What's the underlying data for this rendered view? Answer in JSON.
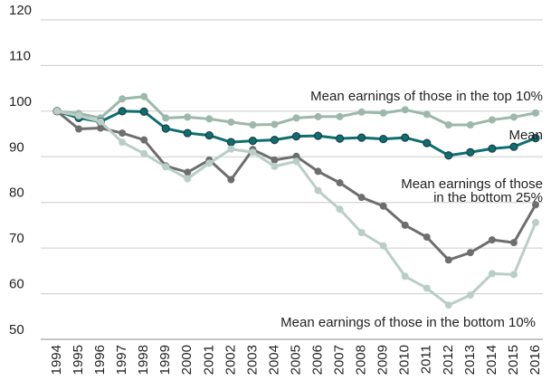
{
  "chart_data": {
    "type": "line",
    "x": [
      1994,
      1995,
      1996,
      1997,
      1998,
      1999,
      2000,
      2001,
      2002,
      2003,
      2004,
      2005,
      2006,
      2007,
      2008,
      2009,
      2010,
      2011,
      2012,
      2013,
      2014,
      2015,
      2016
    ],
    "xlim": [
      1994,
      2016
    ],
    "ylim": [
      50,
      120
    ],
    "yticks": [
      50,
      60,
      70,
      80,
      90,
      100,
      110,
      120
    ],
    "grid": true,
    "series": [
      {
        "name": "Mean earnings of those in the top 10%",
        "color": "#9bb8aa",
        "values": [
          100,
          99.5,
          98.5,
          102.7,
          103.2,
          98.5,
          98.7,
          98.3,
          97.6,
          97,
          97.1,
          98.5,
          98.8,
          98.8,
          99.8,
          99.6,
          100.3,
          99.3,
          97,
          97,
          98.1,
          98.7,
          99.6
        ]
      },
      {
        "name": "Mean",
        "color": "#0f6e6e",
        "values": [
          100,
          98.5,
          97.7,
          100,
          99.9,
          96.2,
          95.2,
          94.7,
          93.2,
          93.5,
          93.7,
          94.5,
          94.6,
          94,
          94.2,
          93.9,
          94.2,
          93,
          90.3,
          91,
          91.8,
          92.2,
          94.1
        ]
      },
      {
        "name": [
          "Mean earnings of those",
          "in the bottom 25%"
        ],
        "color": "#6e6e6e",
        "values": [
          100,
          96.1,
          96.3,
          95.2,
          93.7,
          88,
          86.6,
          89.3,
          85,
          91.6,
          89.3,
          90.1,
          86.8,
          84.3,
          81.1,
          79.2,
          75,
          72.4,
          67.4,
          69,
          71.8,
          71.2,
          79.5
        ]
      },
      {
        "name": "Mean earnings of those in the bottom 10%",
        "color": "#b9cec6",
        "values": [
          100,
          99,
          97.7,
          93.2,
          90.7,
          87.8,
          85.2,
          88.6,
          91.7,
          91,
          87.9,
          89,
          82.6,
          78.5,
          73.4,
          70.5,
          63.8,
          61.2,
          57.5,
          59.7,
          64.4,
          64.2,
          75.6
        ]
      }
    ]
  }
}
